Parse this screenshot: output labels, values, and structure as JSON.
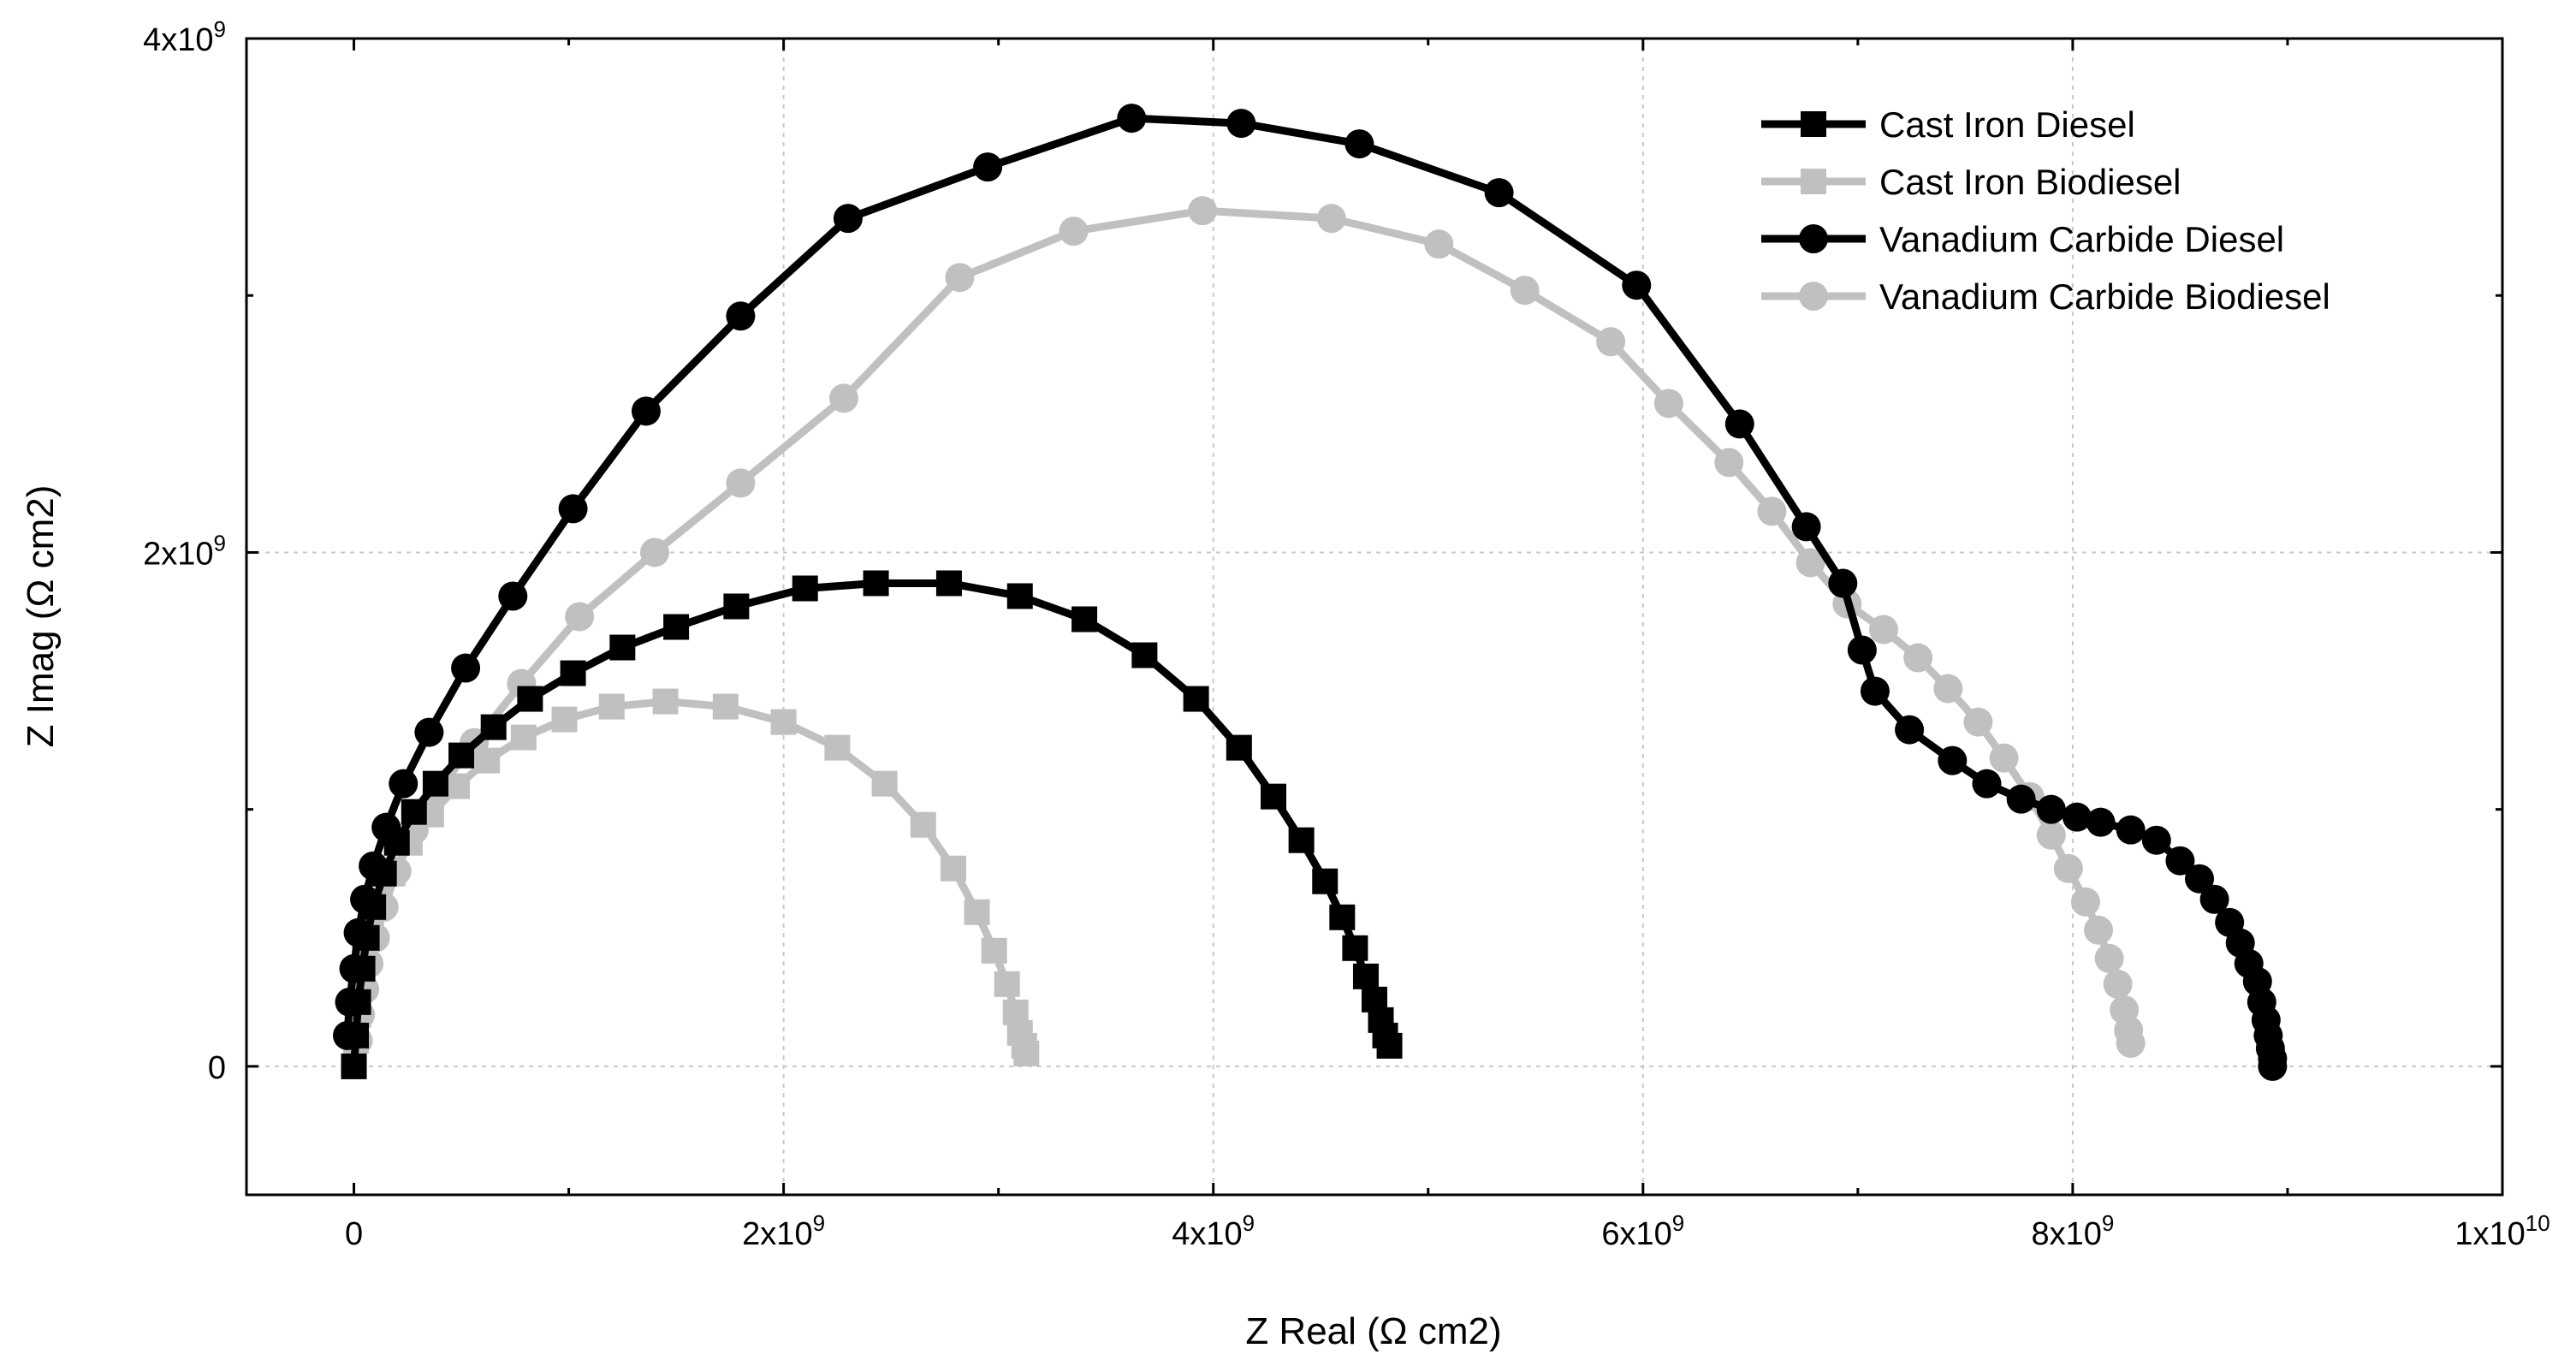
{
  "chart_data": {
    "type": "scatter",
    "title": "",
    "xlabel": "Z Real (Ω cm2)",
    "ylabel": "Z Imag (Ω cm2)",
    "xlim": [
      -500000000,
      10000000000
    ],
    "ylim": [
      -500000000,
      4000000000
    ],
    "grid": true,
    "legend_position": "top-right",
    "x_ticks": [
      {
        "value": 0,
        "base": "0",
        "exp": ""
      },
      {
        "value": 2000000000,
        "base": "2x10",
        "exp": "9"
      },
      {
        "value": 4000000000,
        "base": "4x10",
        "exp": "9"
      },
      {
        "value": 6000000000,
        "base": "6x10",
        "exp": "9"
      },
      {
        "value": 8000000000,
        "base": "8x10",
        "exp": "9"
      },
      {
        "value": 10000000000,
        "base": "1x10",
        "exp": "10"
      }
    ],
    "y_ticks": [
      {
        "value": 0,
        "base": "0",
        "exp": ""
      },
      {
        "value": 2000000000,
        "base": "2x10",
        "exp": "9"
      },
      {
        "value": 4000000000,
        "base": "4x10",
        "exp": "9"
      }
    ],
    "series": [
      {
        "name": "Cast Iron Diesel",
        "color": "#000000",
        "marker": "square",
        "x": [
          0.0,
          0.01,
          0.02,
          0.04,
          0.06,
          0.09,
          0.14,
          0.2,
          0.28,
          0.38,
          0.5,
          0.65,
          0.82,
          1.02,
          1.25,
          1.5,
          1.78,
          2.1,
          2.43,
          2.77,
          3.1,
          3.4,
          3.68,
          3.92,
          4.12,
          4.28,
          4.41,
          4.52,
          4.6,
          4.66,
          4.71,
          4.75,
          4.78,
          4.8,
          4.82
        ],
        "y": [
          0.0,
          0.12,
          0.25,
          0.38,
          0.5,
          0.62,
          0.75,
          0.87,
          0.99,
          1.1,
          1.21,
          1.32,
          1.43,
          1.53,
          1.63,
          1.71,
          1.79,
          1.86,
          1.88,
          1.88,
          1.83,
          1.74,
          1.6,
          1.43,
          1.24,
          1.05,
          0.88,
          0.72,
          0.58,
          0.46,
          0.35,
          0.26,
          0.18,
          0.12,
          0.08
        ]
      },
      {
        "name": "Cast Iron Biodiesel",
        "color": "#c0c0c0",
        "marker": "square",
        "x": [
          0.0,
          0.01,
          0.02,
          0.03,
          0.05,
          0.08,
          0.12,
          0.18,
          0.26,
          0.36,
          0.48,
          0.62,
          0.79,
          0.98,
          1.2,
          1.45,
          1.73,
          2.0,
          2.25,
          2.47,
          2.65,
          2.79,
          2.9,
          2.98,
          3.04,
          3.08,
          3.1,
          3.12,
          3.13
        ],
        "y": [
          0.0,
          0.1,
          0.2,
          0.31,
          0.42,
          0.53,
          0.64,
          0.75,
          0.87,
          0.98,
          1.09,
          1.19,
          1.28,
          1.35,
          1.4,
          1.42,
          1.4,
          1.34,
          1.24,
          1.1,
          0.94,
          0.77,
          0.6,
          0.45,
          0.32,
          0.21,
          0.13,
          0.08,
          0.05
        ]
      },
      {
        "name": "Vanadium Carbide Diesel",
        "color": "#000000",
        "marker": "circle",
        "x": [
          -0.03,
          -0.02,
          0.0,
          0.02,
          0.05,
          0.09,
          0.15,
          0.23,
          0.35,
          0.52,
          0.74,
          1.02,
          1.36,
          1.8,
          2.3,
          2.95,
          3.62,
          4.13,
          4.68,
          5.33,
          5.97,
          6.45,
          6.76,
          6.93,
          7.02,
          7.08,
          7.24,
          7.44,
          7.6,
          7.76,
          7.9,
          8.02,
          8.13,
          8.27,
          8.39,
          8.5,
          8.59,
          8.66,
          8.73,
          8.78,
          8.82,
          8.86,
          8.88,
          8.9,
          8.91,
          8.92,
          8.93,
          8.93
        ],
        "y": [
          0.12,
          0.25,
          0.38,
          0.52,
          0.65,
          0.78,
          0.93,
          1.1,
          1.3,
          1.55,
          1.83,
          2.17,
          2.55,
          2.92,
          3.3,
          3.5,
          3.69,
          3.67,
          3.59,
          3.4,
          3.04,
          2.5,
          2.1,
          1.88,
          1.62,
          1.46,
          1.31,
          1.19,
          1.1,
          1.04,
          1.0,
          0.97,
          0.95,
          0.92,
          0.88,
          0.8,
          0.73,
          0.65,
          0.56,
          0.48,
          0.4,
          0.33,
          0.25,
          0.18,
          0.12,
          0.07,
          0.03,
          0.0
        ]
      },
      {
        "name": "Vanadium Carbide Biodiesel",
        "color": "#c0c0c0",
        "marker": "circle",
        "x": [
          0.02,
          0.03,
          0.05,
          0.07,
          0.1,
          0.14,
          0.2,
          0.28,
          0.4,
          0.56,
          0.78,
          1.05,
          1.4,
          1.8,
          2.28,
          2.82,
          3.35,
          3.95,
          4.55,
          5.05,
          5.45,
          5.85,
          6.12,
          6.4,
          6.6,
          6.78,
          6.95,
          7.12,
          7.28,
          7.42,
          7.56,
          7.68,
          7.8,
          7.9,
          7.98,
          8.06,
          8.12,
          8.17,
          8.21,
          8.24,
          8.26,
          8.27
        ],
        "y": [
          0.1,
          0.2,
          0.3,
          0.4,
          0.5,
          0.62,
          0.76,
          0.92,
          1.08,
          1.26,
          1.49,
          1.75,
          2.0,
          2.27,
          2.6,
          3.07,
          3.25,
          3.33,
          3.3,
          3.2,
          3.02,
          2.82,
          2.58,
          2.35,
          2.16,
          1.96,
          1.8,
          1.7,
          1.59,
          1.47,
          1.34,
          1.2,
          1.05,
          0.9,
          0.77,
          0.64,
          0.53,
          0.42,
          0.32,
          0.22,
          0.14,
          0.09
        ]
      }
    ]
  }
}
